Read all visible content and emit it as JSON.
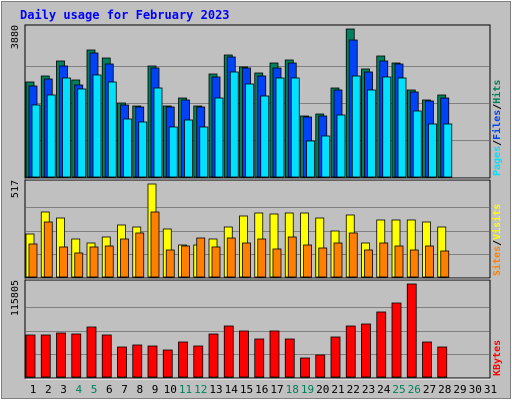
{
  "chart_data": {
    "type": "bar",
    "title": "Daily usage for February 2023",
    "x": [
      "1",
      "2",
      "3",
      "4",
      "5",
      "6",
      "7",
      "8",
      "9",
      "10",
      "11",
      "12",
      "13",
      "14",
      "15",
      "16",
      "17",
      "18",
      "19",
      "20",
      "21",
      "22",
      "23",
      "24",
      "25",
      "26",
      "27",
      "28",
      "29",
      "30",
      "31"
    ],
    "weekend_days": [
      "4",
      "5",
      "11",
      "12",
      "18",
      "19",
      "25",
      "26"
    ],
    "panels": [
      {
        "id": "top",
        "max_label": "3880",
        "ylim": [
          0,
          3880
        ],
        "legend": [
          {
            "text": "Hits",
            "color": "#00805c"
          },
          {
            "text": "/",
            "color": "#000000"
          },
          {
            "text": "Files",
            "color": "#0042f8"
          },
          {
            "text": "/",
            "color": "#000000"
          },
          {
            "text": "Pages",
            "color": "#00e0ff"
          }
        ],
        "series": [
          {
            "name": "Hits",
            "color": "#00805c",
            "values": [
              2490,
              2650,
              3030,
              2550,
              3330,
              3110,
              1940,
              1870,
              2920,
              1870,
              2080,
              1870,
              2690,
              3190,
              2890,
              2730,
              2990,
              3060,
              1610,
              1660,
              2330,
              3880,
              2830,
              3170,
              2990,
              2290,
              2030,
              2160
            ]
          },
          {
            "name": "Files",
            "color": "#0042f8",
            "values": [
              2380,
              2560,
              2900,
              2420,
              3240,
              2960,
              1890,
              1830,
              2860,
              1830,
              2010,
              1830,
              2610,
              3140,
              2860,
              2650,
              2860,
              2990,
              1570,
              1610,
              2270,
              3600,
              2740,
              3040,
              2950,
              2230,
              1990,
              2080
            ]
          },
          {
            "name": "Pages",
            "color": "#00e0ff",
            "values": [
              1900,
              2140,
              2590,
              2300,
              2670,
              2490,
              1520,
              1450,
              2340,
              1320,
              1500,
              1320,
              2060,
              2760,
              2450,
              2120,
              2590,
              2600,
              950,
              1070,
              1620,
              2660,
              2280,
              2620,
              2600,
              1720,
              1380,
              1400
            ]
          }
        ]
      },
      {
        "id": "middle",
        "max_label": "517",
        "ylim": [
          0,
          517
        ],
        "legend": [
          {
            "text": "Visits",
            "color": "#ffff00"
          },
          {
            "text": "/",
            "color": "#000000"
          },
          {
            "text": "Sites",
            "color": "#ff8000"
          }
        ],
        "series": [
          {
            "name": "Visits",
            "color": "#ffff00",
            "values": [
              240,
              360,
              330,
              210,
              190,
              220,
              290,
              277,
              517,
              267,
              176,
              178,
              214,
              279,
              340,
              357,
              350,
              357,
              357,
              330,
              257,
              344,
              188,
              315,
              315,
              315,
              303,
              280
            ]
          },
          {
            "name": "Sites",
            "color": "#ff8000",
            "values": [
              185,
              308,
              169,
              134,
              166,
              171,
              210,
              243,
              360,
              152,
              171,
              216,
              165,
              219,
              191,
              214,
              154,
              223,
              178,
              163,
              187,
              245,
              150,
              190,
              175,
              150,
              171,
              142
            ]
          }
        ]
      },
      {
        "id": "bottom",
        "max_label": "115805",
        "ylim": [
          0,
          115805
        ],
        "legend": [
          {
            "text": "KBytes",
            "color": "#ff0000"
          }
        ],
        "series": [
          {
            "name": "KBytes",
            "color": "#ff0000",
            "values": [
              52600,
              52600,
              55100,
              53900,
              62400,
              52600,
              37800,
              39900,
              38600,
              33500,
              44200,
              38700,
              53600,
              64100,
              56900,
              47200,
              57100,
              47100,
              23500,
              26800,
              49300,
              63800,
              65600,
              80500,
              92100,
              115805,
              43600,
              37200
            ]
          }
        ]
      }
    ]
  }
}
